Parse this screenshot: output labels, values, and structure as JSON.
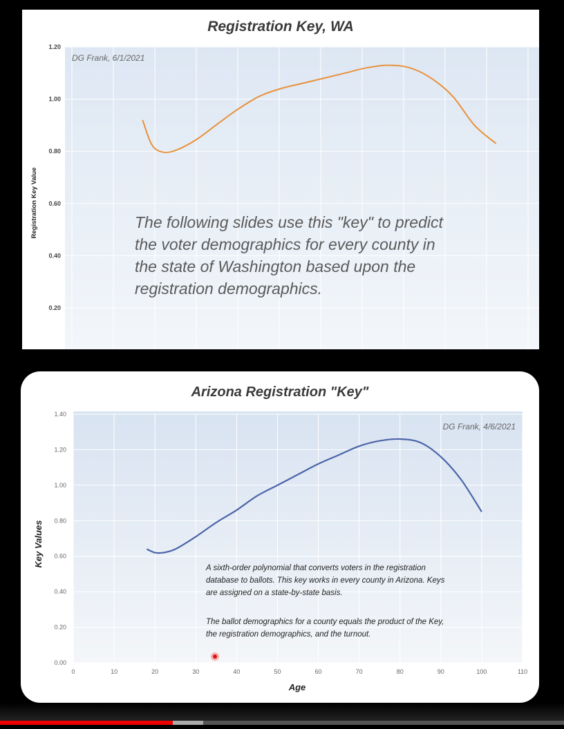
{
  "chart_data": [
    {
      "type": "line",
      "title": "Registration Key, WA",
      "xlabel": "",
      "ylabel": "Registration Key Value",
      "yticks": [
        "1.20",
        "1.00",
        "0.80",
        "0.60",
        "0.40",
        "0.20"
      ],
      "ylim": [
        0.2,
        1.2
      ],
      "xlim": [
        0,
        110
      ],
      "grid": true,
      "line_color": "#e8913a",
      "annotation": "DG Frank, 6/1/2021",
      "caption_lines": [
        "The following slides use this \"key\" to predict",
        "the voter demographics for every county in",
        "the state of Washington based upon the",
        "registration demographics."
      ],
      "series": [
        {
          "x": [
            18,
            20,
            22,
            25,
            30,
            35,
            40,
            45,
            50,
            55,
            60,
            65,
            70,
            75,
            80,
            85,
            90,
            95,
            100
          ],
          "y": [
            0.92,
            0.83,
            0.8,
            0.8,
            0.84,
            0.9,
            0.96,
            1.01,
            1.04,
            1.06,
            1.08,
            1.1,
            1.12,
            1.13,
            1.12,
            1.08,
            1.01,
            0.9,
            0.83
          ]
        }
      ]
    },
    {
      "type": "line",
      "title": "Arizona Registration \"Key\"",
      "xlabel": "Age",
      "ylabel": "Key Values",
      "xticks": [
        "0",
        "10",
        "20",
        "30",
        "40",
        "50",
        "60",
        "70",
        "80",
        "90",
        "100",
        "110"
      ],
      "yticks": [
        "1.40",
        "1.20",
        "1.00",
        "0.80",
        "0.60",
        "0.40",
        "0.20",
        "0.00"
      ],
      "xlim": [
        0,
        110
      ],
      "ylim": [
        0,
        1.4
      ],
      "grid": true,
      "line_color": "#4a64a8",
      "annotation": "DG Frank, 4/6/2021",
      "note_lines": [
        "A sixth-order polynomial that converts voters in the registration",
        "database to ballots. This key works in every county in Arizona. Keys",
        "are assigned on a state-by-state basis.",
        "",
        "The ballot demographics for a county equals the product of the Key,",
        "the registration demographics, and the turnout."
      ],
      "series": [
        {
          "x": [
            18,
            20,
            22,
            25,
            30,
            35,
            40,
            45,
            50,
            55,
            60,
            65,
            70,
            75,
            80,
            85,
            90,
            95,
            100
          ],
          "y": [
            0.64,
            0.62,
            0.62,
            0.64,
            0.71,
            0.79,
            0.86,
            0.94,
            1.0,
            1.06,
            1.12,
            1.17,
            1.22,
            1.25,
            1.26,
            1.24,
            1.16,
            1.03,
            0.85
          ]
        }
      ]
    }
  ],
  "player": {
    "progress": 0.306,
    "buffered": 0.36
  }
}
